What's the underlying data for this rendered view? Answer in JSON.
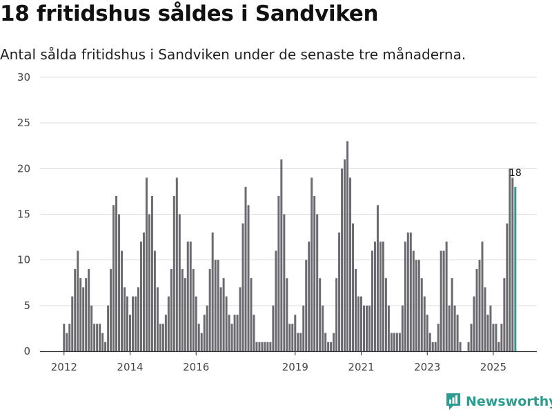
{
  "title": "18 fritidshus såldes i Sandviken",
  "subtitle": "Antal sålda fritidshus i Sandviken under de senaste tre månaderna.",
  "brand": "Newsworthy",
  "colors": {
    "bar": "#6b6a70",
    "highlight": "#2a9d8f",
    "grid": "#dedede",
    "axis": "#333333"
  },
  "chart_data": {
    "type": "bar",
    "title": "18 fritidshus såldes i Sandviken",
    "xlabel": "",
    "ylabel": "",
    "ylim": [
      0,
      30
    ],
    "yticks": [
      0,
      5,
      10,
      15,
      20,
      25,
      30
    ],
    "start": "2012-01",
    "frequency": "monthly",
    "xticks": [
      {
        "label": "2012",
        "index": 0
      },
      {
        "label": "2014",
        "index": 24
      },
      {
        "label": "2016",
        "index": 48
      },
      {
        "label": "2019",
        "index": 84
      },
      {
        "label": "2021",
        "index": 108
      },
      {
        "label": "2023",
        "index": 132
      },
      {
        "label": "2025",
        "index": 156
      }
    ],
    "values": [
      3,
      2,
      3,
      6,
      9,
      11,
      8,
      7,
      8,
      9,
      5,
      3,
      3,
      3,
      2,
      1,
      5,
      9,
      16,
      17,
      15,
      11,
      7,
      6,
      4,
      6,
      6,
      7,
      12,
      13,
      19,
      15,
      17,
      11,
      7,
      3,
      3,
      4,
      6,
      9,
      17,
      19,
      15,
      9,
      8,
      12,
      12,
      9,
      6,
      3,
      2,
      4,
      5,
      9,
      13,
      10,
      10,
      7,
      8,
      6,
      4,
      3,
      4,
      4,
      7,
      14,
      18,
      16,
      8,
      4,
      1,
      1,
      1,
      1,
      1,
      1,
      5,
      11,
      17,
      21,
      15,
      8,
      3,
      3,
      4,
      2,
      2,
      5,
      10,
      12,
      19,
      17,
      15,
      8,
      5,
      2,
      1,
      1,
      2,
      8,
      13,
      20,
      21,
      23,
      19,
      14,
      9,
      6,
      6,
      5,
      5,
      5,
      11,
      12,
      16,
      12,
      12,
      8,
      5,
      2,
      2,
      2,
      2,
      5,
      12,
      13,
      13,
      11,
      10,
      10,
      8,
      6,
      4,
      2,
      1,
      1,
      3,
      11,
      11,
      12,
      5,
      8,
      5,
      4,
      1,
      0,
      0,
      1,
      3,
      6,
      9,
      10,
      12,
      7,
      4,
      5,
      3,
      3,
      1,
      3,
      8,
      14,
      20,
      19,
      18
    ],
    "last_value_label": "18"
  }
}
